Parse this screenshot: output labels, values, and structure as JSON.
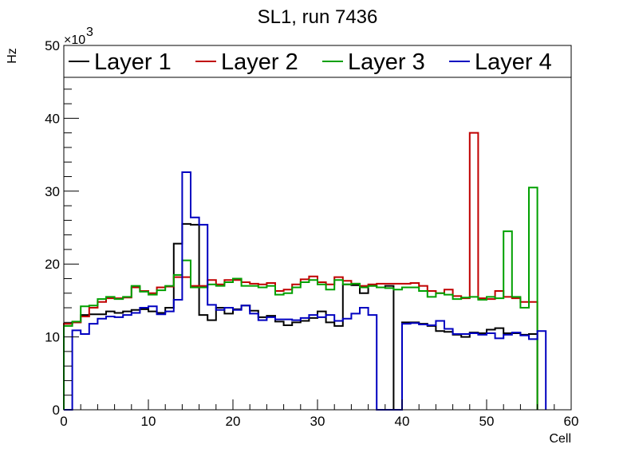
{
  "chart_data": {
    "type": "line",
    "title": "SL1, run 7436",
    "xlabel": "Cell",
    "ylabel": "Hz",
    "y_exponent_label": "×10",
    "y_exponent_power": "3",
    "xlim": [
      0,
      60
    ],
    "ylim": [
      0,
      50
    ],
    "x_ticks": [
      0,
      10,
      20,
      30,
      40,
      50,
      60
    ],
    "y_ticks": [
      0,
      10,
      20,
      30,
      40,
      50
    ],
    "x_bin_width": 1,
    "grid": false,
    "legend_position": "top",
    "series": [
      {
        "name": "Layer 1",
        "color": "#000000",
        "values": [
          11.8,
          12.0,
          13.0,
          13.1,
          13.1,
          13.5,
          13.3,
          13.5,
          13.7,
          13.8,
          13.5,
          13.3,
          14.0,
          22.8,
          25.5,
          25.4,
          13.0,
          12.3,
          14.0,
          13.2,
          13.8,
          14.3,
          13.6,
          12.7,
          12.9,
          12.1,
          11.6,
          12.0,
          12.2,
          12.6,
          13.5,
          12.0,
          11.5,
          17.2,
          17.1,
          16.0,
          17.0,
          16.8,
          17.0,
          0.0,
          12.0,
          12.0,
          11.8,
          11.5,
          10.8,
          10.7,
          10.3,
          10.0,
          10.6,
          10.5,
          11.0,
          11.2,
          10.5,
          10.5,
          10.3,
          10.4
        ]
      },
      {
        "name": "Layer 2",
        "color": "#c00000",
        "values": [
          11.8,
          12.0,
          12.8,
          14.0,
          14.8,
          15.3,
          15.3,
          15.4,
          16.8,
          16.3,
          16.0,
          16.8,
          16.9,
          18.2,
          18.2,
          17.0,
          17.0,
          17.8,
          17.2,
          17.8,
          17.8,
          17.5,
          17.3,
          17.2,
          17.4,
          16.3,
          16.5,
          17.2,
          17.9,
          18.3,
          17.5,
          17.2,
          18.2,
          17.7,
          17.3,
          17.0,
          17.2,
          17.3,
          17.3,
          17.3,
          17.3,
          17.4,
          17.0,
          16.3,
          16.0,
          16.5,
          15.6,
          15.3,
          38.0,
          15.3,
          15.2,
          16.3,
          15.5,
          15.3,
          14.8,
          14.8
        ]
      },
      {
        "name": "Layer 3",
        "color": "#00a000",
        "values": [
          11.5,
          12.1,
          14.2,
          14.3,
          15.2,
          15.5,
          15.2,
          15.5,
          17.0,
          16.2,
          15.8,
          16.4,
          17.0,
          18.5,
          20.5,
          16.8,
          16.8,
          17.2,
          17.0,
          17.5,
          18.0,
          17.0,
          17.0,
          16.8,
          17.0,
          15.8,
          16.0,
          16.8,
          17.5,
          17.8,
          17.2,
          16.5,
          17.8,
          17.2,
          17.3,
          16.8,
          17.0,
          16.8,
          16.7,
          16.5,
          16.8,
          16.8,
          16.3,
          15.5,
          16.0,
          15.8,
          15.2,
          15.4,
          15.5,
          15.1,
          15.5,
          15.3,
          24.5,
          15.5,
          14.0,
          30.5
        ]
      },
      {
        "name": "Layer 4",
        "color": "#0000c0",
        "values": [
          0.0,
          10.9,
          10.4,
          11.8,
          12.5,
          12.8,
          12.7,
          13.0,
          13.3,
          14.0,
          14.2,
          13.1,
          13.5,
          15.1,
          32.6,
          26.4,
          25.4,
          14.4,
          13.7,
          14.0,
          13.7,
          14.3,
          13.2,
          12.3,
          12.7,
          12.4,
          12.4,
          12.3,
          12.6,
          13.0,
          12.7,
          13.0,
          12.2,
          12.5,
          13.2,
          14.0,
          13.0,
          0.0,
          0.0,
          0.0,
          11.8,
          11.9,
          11.7,
          11.6,
          12.2,
          11.1,
          10.4,
          10.4,
          10.5,
          10.3,
          10.5,
          9.8,
          10.3,
          10.6,
          10.2,
          9.7,
          10.8
        ]
      }
    ]
  }
}
